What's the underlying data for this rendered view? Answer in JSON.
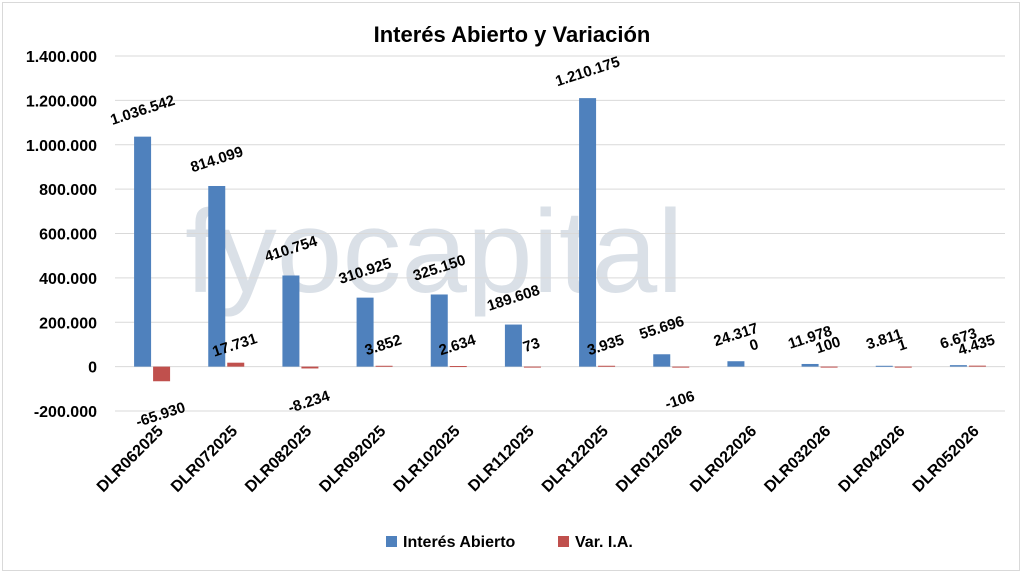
{
  "watermark": "fyocapital",
  "chart_data": {
    "type": "bar",
    "title": "Interés Abierto y Variación",
    "categories": [
      "DLR062025",
      "DLR072025",
      "DLR082025",
      "DLR092025",
      "DLR102025",
      "DLR112025",
      "DLR122025",
      "DLR012026",
      "DLR022026",
      "DLR032026",
      "DLR042026",
      "DLR052026"
    ],
    "series": [
      {
        "name": "Interés Abierto",
        "color": "#4f81bd",
        "values": [
          1036542,
          814099,
          410754,
          310925,
          325150,
          189608,
          1210175,
          55696,
          24317,
          11978,
          3811,
          6673
        ],
        "labels": [
          "1.036.542",
          "814.099",
          "410.754",
          "310.925",
          "325.150",
          "189.608",
          "1.210.175",
          "55.696",
          "24.317",
          "11.978",
          "3.811",
          "6.673"
        ]
      },
      {
        "name": "Var. I.A.",
        "color": "#c0504d",
        "values": [
          -65930,
          17731,
          -8234,
          3852,
          2634,
          73,
          3935,
          -106,
          0,
          100,
          1,
          4435
        ],
        "labels": [
          "-65.930",
          "17.731",
          "-8.234",
          "3.852",
          "2.634",
          "73",
          "3.935",
          "-106",
          "0",
          "100",
          "1",
          "4.435"
        ]
      }
    ],
    "ylim": [
      -200000,
      1400000
    ],
    "yticks": [
      1400000,
      1200000,
      1000000,
      800000,
      600000,
      400000,
      200000,
      0,
      -200000
    ],
    "ytick_labels": [
      "1.400.000",
      "1.200.000",
      "1.000.000",
      "800.000",
      "600.000",
      "400.000",
      "200.000",
      "0",
      "-200.000"
    ],
    "grid": true,
    "legend_position": "bottom"
  }
}
